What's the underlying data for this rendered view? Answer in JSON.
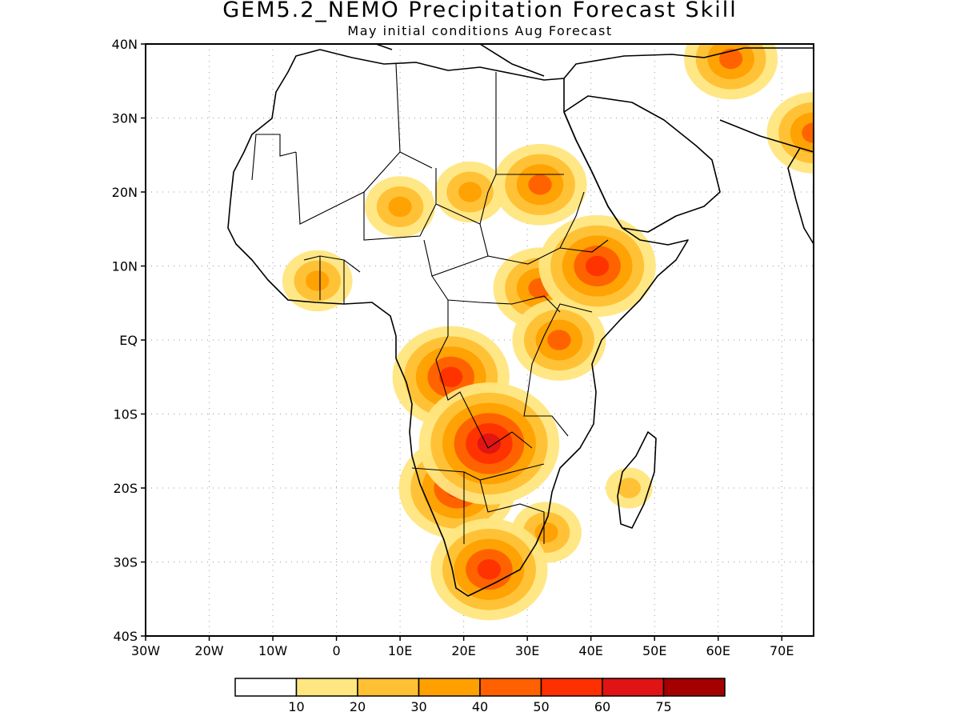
{
  "title": "GEM5.2_NEMO Precipitation Forecast Skill",
  "subtitle": "May initial conditions  Aug Forecast",
  "lat_labels": [
    "40N",
    "30N",
    "20N",
    "10N",
    "EQ",
    "10S",
    "20S",
    "30S",
    "40S"
  ],
  "lon_labels": [
    "30W",
    "20W",
    "10W",
    "0",
    "10E",
    "20E",
    "30E",
    "40E",
    "50E",
    "60E",
    "70E"
  ],
  "colorbar": {
    "colors": [
      "#ffffff",
      "#ffe680",
      "#ffc033",
      "#ffa000",
      "#ff6000",
      "#ff3000",
      "#e01414",
      "#a50000"
    ],
    "labels": [
      "10",
      "20",
      "30",
      "40",
      "50",
      "60",
      "75"
    ]
  },
  "chart_data": {
    "type": "heatmap",
    "title": "GEM5.2_NEMO Precipitation Forecast Skill",
    "subtitle": "May initial conditions  Aug Forecast",
    "lon_range": [
      -30,
      75
    ],
    "lat_range": [
      -40,
      40
    ],
    "levels": [
      10,
      20,
      30,
      40,
      50,
      60,
      75
    ],
    "grid": true,
    "skill_regions": [
      {
        "lon": 24,
        "lat": -14,
        "level": 60
      },
      {
        "lon": 19,
        "lat": -20,
        "level": 50
      },
      {
        "lon": 24,
        "lat": -31,
        "level": 50
      },
      {
        "lon": 18,
        "lat": -5,
        "level": 50
      },
      {
        "lon": 41,
        "lat": 10,
        "level": 50
      },
      {
        "lon": 32,
        "lat": 7,
        "level": 40
      },
      {
        "lon": 35,
        "lat": 0,
        "level": 40
      },
      {
        "lon": 32,
        "lat": 21,
        "level": 40
      },
      {
        "lon": 21,
        "lat": 20,
        "level": 30
      },
      {
        "lon": 10,
        "lat": 18,
        "level": 30
      },
      {
        "lon": 62,
        "lat": 38,
        "level": 40
      },
      {
        "lon": 75,
        "lat": 28,
        "level": 40
      },
      {
        "lon": -3,
        "lat": 8,
        "level": 30
      },
      {
        "lon": 33,
        "lat": -26,
        "level": 30
      },
      {
        "lon": 46,
        "lat": -20,
        "level": 20
      }
    ]
  }
}
